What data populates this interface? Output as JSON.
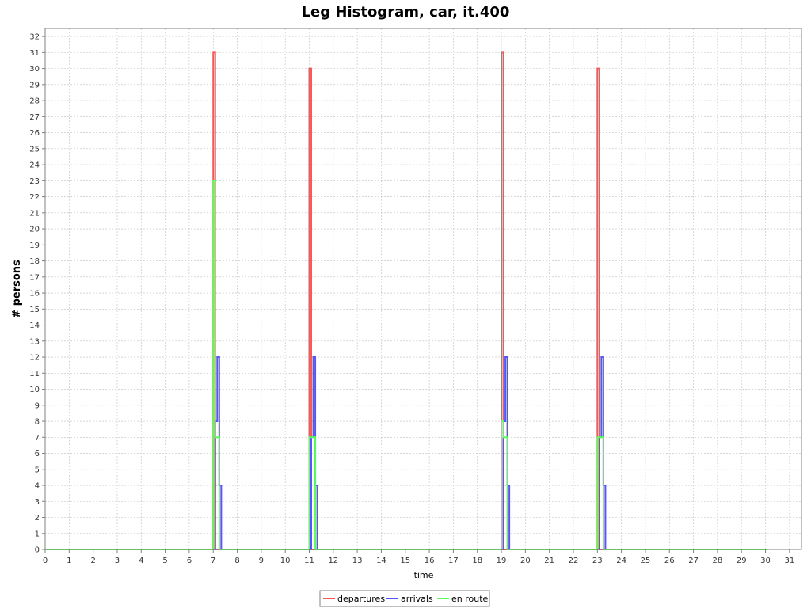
{
  "chart_data": {
    "type": "line",
    "title": "Leg Histogram, car, it.400",
    "xlabel": "time",
    "ylabel": "# persons",
    "xlim": [
      0,
      31.5
    ],
    "ylim": [
      0,
      32.5
    ],
    "x_ticks": [
      0,
      1,
      2,
      3,
      4,
      5,
      6,
      7,
      8,
      9,
      10,
      11,
      12,
      13,
      14,
      15,
      16,
      17,
      18,
      19,
      20,
      21,
      22,
      23,
      24,
      25,
      26,
      27,
      28,
      29,
      30,
      31
    ],
    "y_ticks": [
      0,
      1,
      2,
      3,
      4,
      5,
      6,
      7,
      8,
      9,
      10,
      11,
      12,
      13,
      14,
      15,
      16,
      17,
      18,
      19,
      20,
      21,
      22,
      23,
      24,
      25,
      26,
      27,
      28,
      29,
      30,
      31,
      32
    ],
    "grid": true,
    "legend_position": "bottom-center",
    "series": [
      {
        "name": "departures",
        "color": "#ff5555",
        "points": [
          [
            0,
            0
          ],
          [
            7.0,
            0
          ],
          [
            7.0,
            31
          ],
          [
            7.083,
            31
          ],
          [
            7.083,
            0
          ],
          [
            11.0,
            0
          ],
          [
            11.0,
            30
          ],
          [
            11.083,
            30
          ],
          [
            11.083,
            0
          ],
          [
            19.0,
            0
          ],
          [
            19.0,
            31
          ],
          [
            19.083,
            31
          ],
          [
            19.083,
            0
          ],
          [
            23.0,
            0
          ],
          [
            23.0,
            30
          ],
          [
            23.083,
            30
          ],
          [
            23.083,
            0
          ],
          [
            30.083,
            0
          ]
        ]
      },
      {
        "name": "arrivals",
        "color": "#5555ff",
        "points": [
          [
            0,
            0
          ],
          [
            7.083,
            0
          ],
          [
            7.083,
            8
          ],
          [
            7.167,
            8
          ],
          [
            7.167,
            12
          ],
          [
            7.25,
            12
          ],
          [
            7.25,
            4
          ],
          [
            7.333,
            4
          ],
          [
            7.333,
            0
          ],
          [
            11.083,
            0
          ],
          [
            11.083,
            7
          ],
          [
            11.167,
            7
          ],
          [
            11.167,
            12
          ],
          [
            11.25,
            12
          ],
          [
            11.25,
            4
          ],
          [
            11.333,
            4
          ],
          [
            11.333,
            0
          ],
          [
            19.083,
            0
          ],
          [
            19.083,
            8
          ],
          [
            19.167,
            8
          ],
          [
            19.167,
            12
          ],
          [
            19.25,
            12
          ],
          [
            19.25,
            4
          ],
          [
            19.333,
            4
          ],
          [
            19.333,
            0
          ],
          [
            23.083,
            0
          ],
          [
            23.083,
            7
          ],
          [
            23.167,
            7
          ],
          [
            23.167,
            12
          ],
          [
            23.25,
            12
          ],
          [
            23.25,
            4
          ],
          [
            23.333,
            4
          ],
          [
            23.333,
            0
          ],
          [
            30.083,
            0
          ]
        ]
      },
      {
        "name": "en route",
        "color": "#55ff55",
        "points": [
          [
            0,
            0
          ],
          [
            7.0,
            0
          ],
          [
            7.0,
            23
          ],
          [
            7.083,
            23
          ],
          [
            7.083,
            7
          ],
          [
            7.25,
            7
          ],
          [
            7.25,
            0
          ],
          [
            11.0,
            0
          ],
          [
            11.0,
            7
          ],
          [
            11.25,
            7
          ],
          [
            11.25,
            0
          ],
          [
            19.0,
            0
          ],
          [
            19.0,
            8
          ],
          [
            19.083,
            8
          ],
          [
            19.083,
            7
          ],
          [
            19.25,
            7
          ],
          [
            19.25,
            0
          ],
          [
            23.0,
            0
          ],
          [
            23.0,
            7
          ],
          [
            23.25,
            7
          ],
          [
            23.25,
            0
          ],
          [
            30.083,
            0
          ]
        ]
      }
    ]
  }
}
